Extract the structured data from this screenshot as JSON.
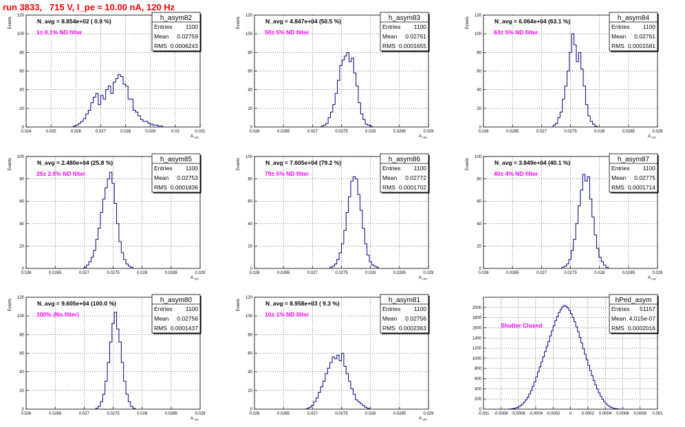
{
  "page_title": "run 3833,   715 V, I_pe ≈ 10.00 nA, 120 Hz",
  "colors": {
    "title": "#ff0000",
    "annotation": "#ff00ff",
    "histogram_line": "#000080",
    "grid": "#000000"
  },
  "chart_data": [
    {
      "type": "histogram",
      "name": "h_asym82",
      "nav_text": "N_avg = 8.854e+02 ( 0.9 %)",
      "annotation": "1± 0.1% ND filter",
      "stats": {
        "entries": "1100",
        "mean": "0.02759",
        "rms": "0.0006243"
      },
      "xlabel": "A_UID",
      "ylabel": "Events",
      "xlim": [
        0.024,
        0.031
      ],
      "ylim": [
        0,
        120
      ],
      "xticks": [
        0.024,
        0.025,
        0.026,
        0.027,
        0.028,
        0.029,
        0.03,
        0.031
      ],
      "xtick_labels": [
        "0.024",
        "0.025",
        "0.026",
        "0.027",
        "0.028",
        "0.029",
        "0.03",
        "0.031"
      ],
      "yticks": [
        0,
        20,
        40,
        60,
        80,
        100,
        120
      ],
      "ytick_labels": [
        "0",
        "20",
        "40",
        "60",
        "80",
        "100",
        "120"
      ],
      "grid": true,
      "bins": {
        "x0": 0.0259,
        "width": 0.0001,
        "counts": [
          1,
          2,
          4,
          6,
          9,
          14,
          18,
          26,
          32,
          36,
          24,
          34,
          30,
          40,
          44,
          36,
          48,
          52,
          56,
          54,
          46,
          44,
          30,
          30,
          18,
          16,
          12,
          8,
          6,
          6,
          4,
          3,
          2,
          2,
          1,
          1
        ]
      }
    },
    {
      "type": "histogram",
      "name": "h_asym83",
      "nav_text": "N_avg = 4.847e+04 (50.5 %)",
      "annotation": "50± 5% ND filter",
      "stats": {
        "entries": "1100",
        "mean": "0.02761",
        "rms": "0.0001655"
      },
      "xlabel": "A_UID",
      "ylabel": "Events",
      "xlim": [
        0.026,
        0.029
      ],
      "ylim": [
        0,
        120
      ],
      "xticks": [
        0.026,
        0.0265,
        0.027,
        0.0275,
        0.028,
        0.0285,
        0.029
      ],
      "xtick_labels": [
        "0.026",
        "0.0265",
        "0.027",
        "0.0275",
        "0.028",
        "0.0285",
        "0.029"
      ],
      "yticks": [
        0,
        20,
        40,
        60,
        80,
        100,
        120
      ],
      "ytick_labels": [
        "0",
        "20",
        "40",
        "60",
        "80",
        "100",
        "120"
      ],
      "grid": true,
      "bins": {
        "x0": 0.02715,
        "width": 4e-05,
        "counts": [
          1,
          2,
          4,
          10,
          16,
          24,
          36,
          50,
          66,
          72,
          76,
          80,
          70,
          74,
          58,
          44,
          26,
          14,
          8,
          3,
          2,
          1
        ]
      }
    },
    {
      "type": "histogram",
      "name": "h_asym84",
      "nav_text": "N_avg = 6.064e+04 (63.1 %)",
      "annotation": "63± 5% ND filter",
      "stats": {
        "entries": "1100",
        "mean": "0.02761",
        "rms": "0.0001581"
      },
      "xlabel": "A_UID",
      "ylabel": "Events",
      "xlim": [
        0.026,
        0.029
      ],
      "ylim": [
        0,
        120
      ],
      "xticks": [
        0.026,
        0.0265,
        0.027,
        0.0275,
        0.028,
        0.0285,
        0.029
      ],
      "xtick_labels": [
        "0.026",
        "0.0265",
        "0.027",
        "0.0275",
        "0.028",
        "0.0285",
        "0.029"
      ],
      "yticks": [
        0,
        20,
        40,
        60,
        80,
        100,
        120
      ],
      "ytick_labels": [
        "0",
        "20",
        "40",
        "60",
        "80",
        "100",
        "120"
      ],
      "grid": true,
      "bins": {
        "x0": 0.0272,
        "width": 4e-05,
        "counts": [
          2,
          4,
          10,
          16,
          30,
          44,
          60,
          80,
          100,
          88,
          70,
          80,
          62,
          44,
          24,
          12,
          6,
          3,
          1
        ]
      }
    },
    {
      "type": "histogram",
      "name": "h_asym85",
      "nav_text": "N_avg = 2.480e+04 (25.8 %)",
      "annotation": "25± 2.5% ND filter",
      "stats": {
        "entries": "1100",
        "mean": "0.02753",
        "rms": "0.0001836"
      },
      "xlabel": "A_UID",
      "ylabel": "Events",
      "xlim": [
        0.026,
        0.029
      ],
      "ylim": [
        0,
        100
      ],
      "xticks": [
        0.026,
        0.0265,
        0.027,
        0.0275,
        0.028,
        0.0285,
        0.029
      ],
      "xtick_labels": [
        "0.026",
        "0.0265",
        "0.027",
        "0.0275",
        "0.028",
        "0.0285",
        "0.029"
      ],
      "yticks": [
        0,
        20,
        40,
        60,
        80,
        100
      ],
      "ytick_labels": [
        "0",
        "20",
        "40",
        "60",
        "80",
        "100"
      ],
      "grid": true,
      "bins": {
        "x0": 0.027,
        "width": 4e-05,
        "counts": [
          1,
          3,
          6,
          10,
          16,
          26,
          36,
          50,
          62,
          72,
          80,
          86,
          76,
          58,
          40,
          24,
          14,
          8,
          4,
          2,
          1
        ]
      }
    },
    {
      "type": "histogram",
      "name": "h_asym86",
      "nav_text": "N_avg = 7.605e+04 (79.2 %)",
      "annotation": "79± 5% ND filter",
      "stats": {
        "entries": "1100",
        "mean": "0.02772",
        "rms": "0.0001702"
      },
      "xlabel": "A_UID",
      "ylabel": "Events",
      "xlim": [
        0.026,
        0.029
      ],
      "ylim": [
        0,
        100
      ],
      "xticks": [
        0.026,
        0.0265,
        0.027,
        0.0275,
        0.028,
        0.0285,
        0.029
      ],
      "xtick_labels": [
        "0.026",
        "0.0265",
        "0.027",
        "0.0275",
        "0.028",
        "0.0285",
        "0.029"
      ],
      "yticks": [
        0,
        20,
        40,
        60,
        80,
        100
      ],
      "ytick_labels": [
        "0",
        "20",
        "40",
        "60",
        "80",
        "100"
      ],
      "grid": true,
      "bins": {
        "x0": 0.0273,
        "width": 4e-05,
        "counts": [
          1,
          2,
          4,
          8,
          14,
          22,
          34,
          50,
          64,
          78,
          82,
          80,
          66,
          52,
          36,
          22,
          12,
          6,
          3,
          2,
          1
        ]
      }
    },
    {
      "type": "histogram",
      "name": "h_asym87",
      "nav_text": "N_avg = 3.849e+04 (40.1 %)",
      "annotation": "40± 4% ND filter",
      "stats": {
        "entries": "1100",
        "mean": "0.02775",
        "rms": "0.0001714"
      },
      "xlabel": "A_UID",
      "ylabel": "Events",
      "xlim": [
        0.026,
        0.029
      ],
      "ylim": [
        0,
        100
      ],
      "xticks": [
        0.026,
        0.0265,
        0.027,
        0.0275,
        0.028,
        0.0285,
        0.029
      ],
      "xtick_labels": [
        "0.026",
        "0.0265",
        "0.027",
        "0.0275",
        "0.028",
        "0.0285",
        "0.029"
      ],
      "yticks": [
        0,
        20,
        40,
        60,
        80,
        100
      ],
      "ytick_labels": [
        "0",
        "20",
        "40",
        "60",
        "80",
        "100"
      ],
      "grid": true,
      "bins": {
        "x0": 0.02735,
        "width": 4e-05,
        "counts": [
          1,
          2,
          4,
          8,
          16,
          26,
          40,
          56,
          70,
          84,
          78,
          82,
          62,
          46,
          30,
          18,
          10,
          6,
          3,
          1
        ]
      }
    },
    {
      "type": "histogram",
      "name": "h_asym80",
      "nav_text": "N_avg = 9.605e+04 (100.0 %)",
      "annotation": "100% (No filter)",
      "stats": {
        "entries": "1100",
        "mean": "0.02756",
        "rms": "0.0001437"
      },
      "xlabel": "A_UID",
      "ylabel": "Events",
      "xlim": [
        0.026,
        0.029
      ],
      "ylim": [
        0,
        120
      ],
      "xticks": [
        0.026,
        0.0265,
        0.027,
        0.0275,
        0.028,
        0.0285,
        0.029
      ],
      "xtick_labels": [
        "0.026",
        "0.0265",
        "0.027",
        "0.0275",
        "0.028",
        "0.0285",
        "0.029"
      ],
      "yticks": [
        0,
        20,
        40,
        60,
        80,
        100,
        120
      ],
      "ytick_labels": [
        "0",
        "20",
        "40",
        "60",
        "80",
        "100",
        "120"
      ],
      "grid": true,
      "bins": {
        "x0": 0.0272,
        "width": 4e-05,
        "counts": [
          1,
          3,
          8,
          16,
          30,
          50,
          72,
          92,
          104,
          86,
          72,
          50,
          30,
          16,
          8,
          3,
          1
        ]
      }
    },
    {
      "type": "histogram",
      "name": "h_asym81",
      "nav_text": "N_avg = 8.958e+03 ( 9.3 %)",
      "annotation": "10± 1% ND filter",
      "stats": {
        "entries": "1100",
        "mean": "0.02756",
        "rms": "0.0002363"
      },
      "xlabel": "A_UID",
      "ylabel": "Events",
      "xlim": [
        0.026,
        0.029
      ],
      "ylim": [
        0,
        120
      ],
      "xticks": [
        0.026,
        0.0265,
        0.027,
        0.0275,
        0.028,
        0.0285,
        0.029
      ],
      "xtick_labels": [
        "0.026",
        "0.0265",
        "0.027",
        "0.0275",
        "0.028",
        "0.0285",
        "0.029"
      ],
      "yticks": [
        0,
        20,
        40,
        60,
        80,
        100,
        120
      ],
      "ytick_labels": [
        "0",
        "20",
        "40",
        "60",
        "80",
        "100",
        "120"
      ],
      "grid": true,
      "bins": {
        "x0": 0.0269,
        "width": 4e-05,
        "counts": [
          1,
          2,
          4,
          8,
          12,
          18,
          24,
          30,
          38,
          44,
          50,
          56,
          54,
          58,
          52,
          60,
          46,
          38,
          30,
          22,
          16,
          10,
          8,
          6,
          4,
          2,
          1
        ]
      }
    },
    {
      "type": "histogram",
      "name": "hPed_asym",
      "nav_text": "",
      "annotation": "Shutter Closed",
      "stats": {
        "entries": "51157",
        "mean": "4.015e-07",
        "rms": "0.0002016"
      },
      "xlabel": "",
      "ylabel": "",
      "xlim": [
        -0.001,
        0.001
      ],
      "ylim": [
        0,
        2200
      ],
      "xticks": [
        -0.001,
        -0.0008,
        -0.0006,
        -0.0004,
        -0.0002,
        0,
        0.0002,
        0.0004,
        0.0006,
        0.0008,
        0.001
      ],
      "xtick_labels": [
        "-0.001",
        "-0.0008",
        "-0.0006",
        "-0.0004",
        "-0.0002",
        "0",
        "0.0002",
        "0.0004",
        "0.0006",
        "0.0008",
        "0.001"
      ],
      "yticks": [
        0,
        200,
        400,
        600,
        800,
        1000,
        1200,
        1400,
        1600,
        1800,
        2000
      ],
      "ytick_labels": [
        "0",
        "200",
        "400",
        "600",
        "800",
        "1000",
        "1200",
        "1400",
        "1600",
        "1800",
        "2000"
      ],
      "grid": true,
      "bins": {
        "x0": -0.00072,
        "width": 2e-05,
        "counts": [
          2,
          4,
          8,
          14,
          22,
          34,
          50,
          72,
          100,
          136,
          180,
          232,
          296,
          366,
          448,
          536,
          632,
          730,
          830,
          930,
          1030,
          1130,
          1230,
          1330,
          1440,
          1540,
          1640,
          1740,
          1820,
          1900,
          1960,
          2010,
          2040,
          2020,
          1990,
          1940,
          1880,
          1800,
          1720,
          1620,
          1520,
          1410,
          1300,
          1190,
          1080,
          970,
          860,
          760,
          660,
          566,
          476,
          394,
          320,
          254,
          196,
          148,
          108,
          76,
          52,
          34,
          22,
          14,
          8,
          4,
          2
        ]
      }
    }
  ]
}
